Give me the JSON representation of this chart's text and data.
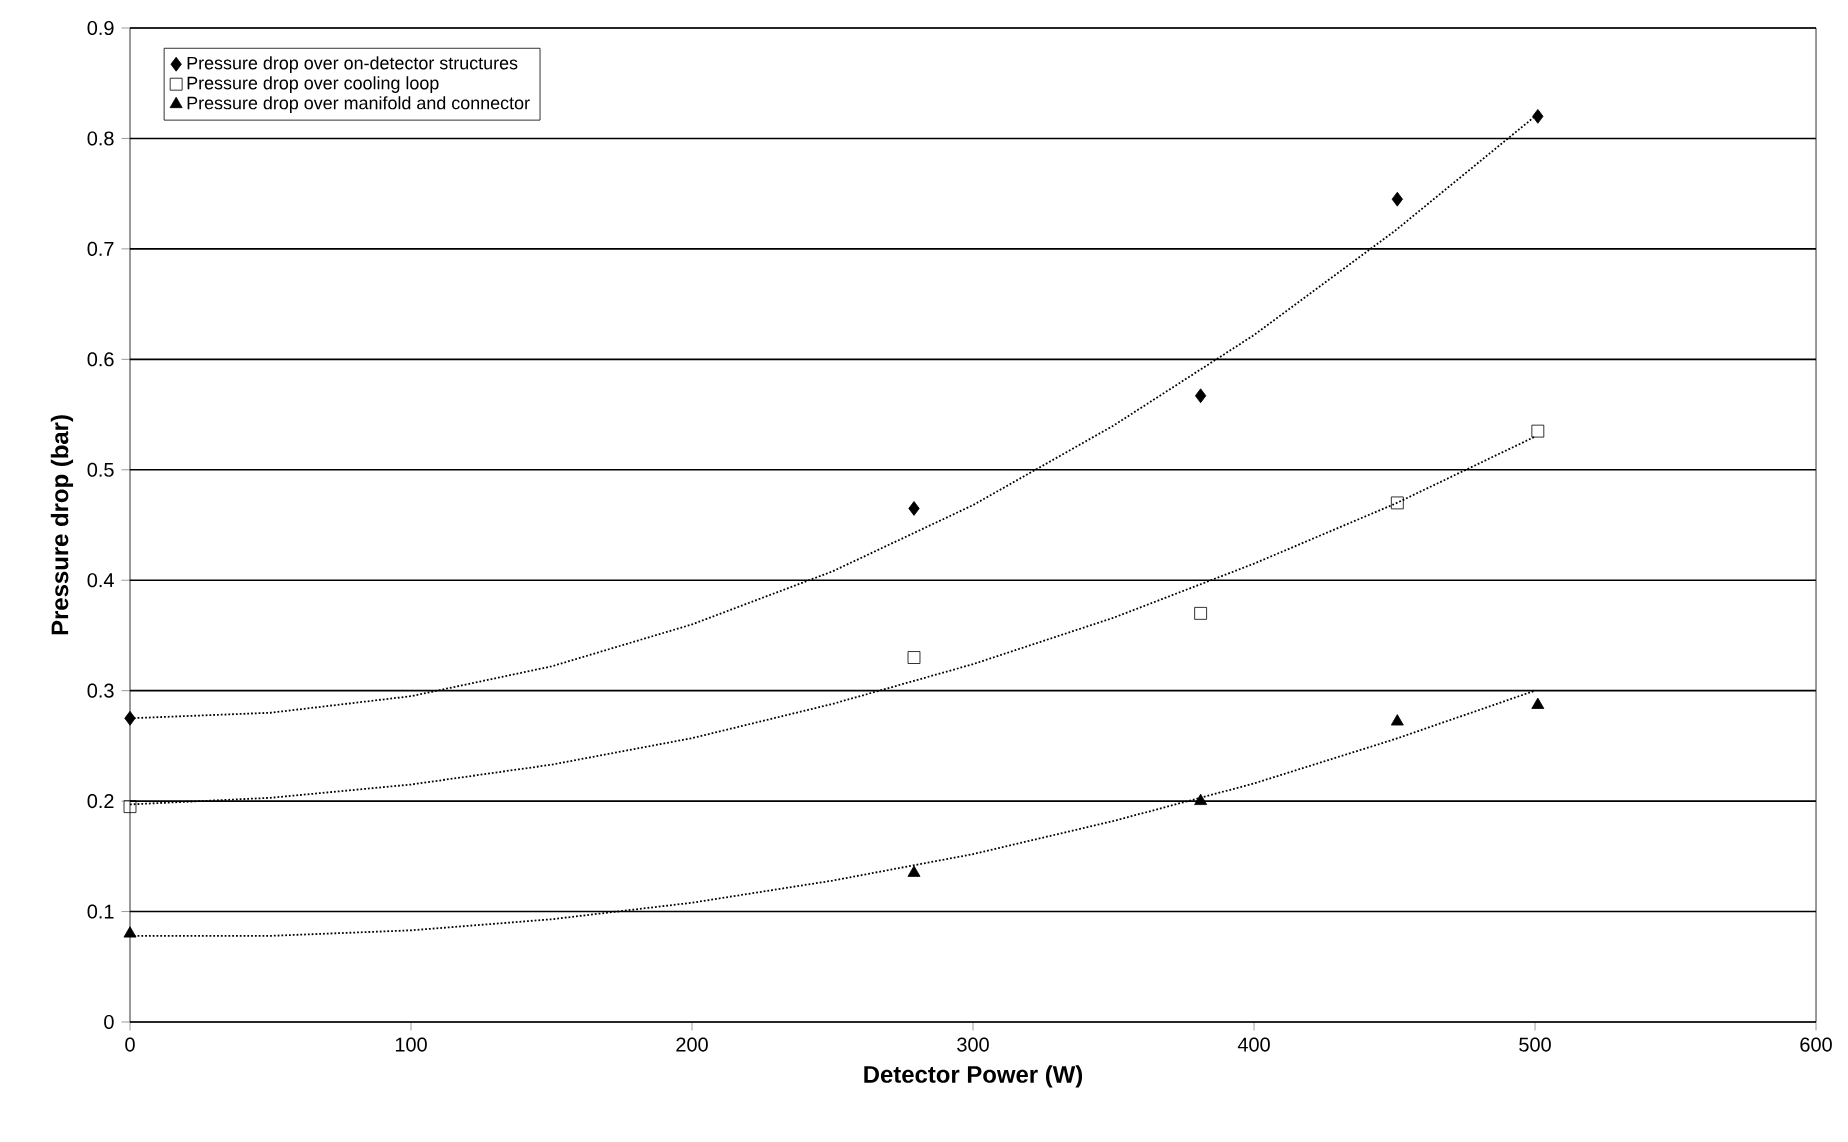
{
  "chart_data": {
    "type": "scatter",
    "xlabel": "Detector Power (W)",
    "ylabel": "Pressure drop (bar)",
    "xlim": [
      0,
      600
    ],
    "xticks": [
      0,
      100,
      200,
      300,
      400,
      500,
      600
    ],
    "ylim": [
      0,
      0.9
    ],
    "yticks": [
      0,
      0.1,
      0.2,
      0.3,
      0.4,
      0.5,
      0.6,
      0.7,
      0.8,
      0.9
    ],
    "grid": "y",
    "legend": "top left",
    "series": [
      {
        "name": "Pressure drop over on-detector structures",
        "marker": "diamond",
        "color": "#000000",
        "x": [
          0,
          279,
          381,
          451,
          501
        ],
        "values": [
          0.275,
          0.465,
          0.567,
          0.745,
          0.82
        ]
      },
      {
        "name": "Pressure drop over cooling loop",
        "marker": "square",
        "color": "#000000",
        "x": [
          0,
          279,
          381,
          451,
          501
        ],
        "values": [
          0.195,
          0.33,
          0.37,
          0.47,
          0.535
        ]
      },
      {
        "name": "Pressure drop over manifold and connector",
        "marker": "triangle",
        "color": "#000000",
        "x": [
          0,
          279,
          381,
          451,
          501
        ],
        "values": [
          0.08,
          0.135,
          0.2,
          0.272,
          0.287
        ]
      },
      {
        "type": "line",
        "line_style": "dotted",
        "color": "#000000",
        "x": [
          0,
          50,
          100,
          150,
          200,
          250,
          300,
          350,
          400,
          450,
          500
        ],
        "values": [
          0.275,
          0.28,
          0.295,
          0.322,
          0.36,
          0.408,
          0.468,
          0.54,
          0.622,
          0.716,
          0.82
        ]
      },
      {
        "type": "line",
        "line_style": "dotted",
        "color": "#000000",
        "x": [
          0,
          50,
          100,
          150,
          200,
          250,
          300,
          350,
          400,
          450,
          500
        ],
        "values": [
          0.197,
          0.203,
          0.215,
          0.233,
          0.257,
          0.288,
          0.324,
          0.366,
          0.415,
          0.469,
          0.53
        ]
      },
      {
        "type": "line",
        "line_style": "dotted",
        "color": "#000000",
        "x": [
          0,
          50,
          100,
          150,
          200,
          250,
          300,
          350,
          400,
          450,
          500
        ],
        "values": [
          0.078,
          0.078,
          0.083,
          0.093,
          0.108,
          0.128,
          0.152,
          0.182,
          0.216,
          0.256,
          0.3
        ]
      }
    ]
  }
}
